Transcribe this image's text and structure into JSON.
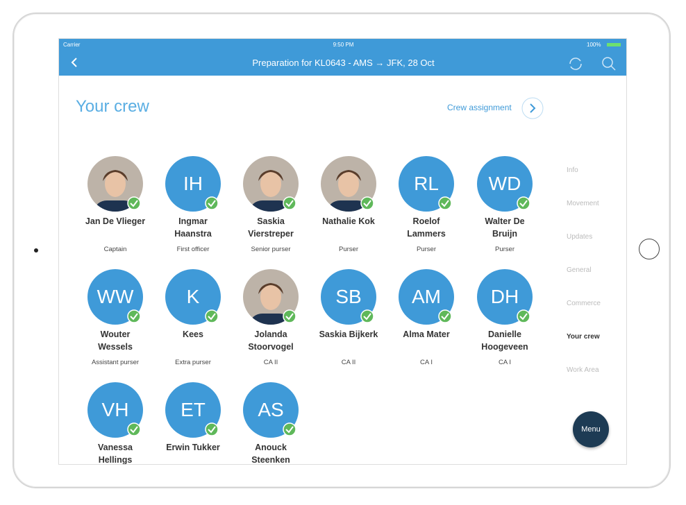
{
  "status_bar": {
    "carrier": "Carrier",
    "time": "9:50 PM",
    "battery": "100%"
  },
  "nav_bar": {
    "title": "Preparation for KL0643 - AMS → JFK, 28 Oct"
  },
  "header": {
    "title": "Your crew",
    "link": "Crew assignment"
  },
  "crew": [
    {
      "name": [
        "Jan De Vlieger"
      ],
      "role": "Captain"
    },
    {
      "initials": "IH",
      "name": [
        "Ingmar",
        "Haanstra"
      ],
      "role": "First officer"
    },
    {
      "name": [
        "Saskia",
        "Vierstreper"
      ],
      "role": "Senior purser"
    },
    {
      "name": [
        "Nathalie Kok"
      ],
      "role": "Purser"
    },
    {
      "initials": "RL",
      "name": [
        "Roelof",
        "Lammers"
      ],
      "role": "Purser"
    },
    {
      "initials": "WD",
      "name": [
        "Walter De",
        "Bruijn"
      ],
      "role": "Purser"
    },
    {
      "initials": "WW",
      "name": [
        "Wouter",
        "Wessels"
      ],
      "role": "Assistant purser"
    },
    {
      "initials": "K",
      "name": [
        "Kees"
      ],
      "role": "Extra purser"
    },
    {
      "name": [
        "Jolanda",
        "Stoorvogel"
      ],
      "role": "CA II"
    },
    {
      "initials": "SB",
      "name": [
        "Saskia Bijkerk"
      ],
      "role": "CA II"
    },
    {
      "initials": "AM",
      "name": [
        "Alma Mater"
      ],
      "role": "CA I"
    },
    {
      "initials": "DH",
      "name": [
        "Danielle",
        "Hoogeveen"
      ],
      "role": "CA I"
    },
    {
      "initials": "VH",
      "name": [
        "Vanessa",
        "Hellings"
      ]
    },
    {
      "initials": "ET",
      "name": [
        "Erwin Tukker"
      ]
    },
    {
      "initials": "AS",
      "name": [
        "Anouck",
        "Steenken"
      ]
    }
  ],
  "side_nav": {
    "items": [
      "Info",
      "Movement",
      "Updates",
      "General",
      "Commerce",
      "Your crew",
      "Work Area"
    ],
    "active": 5
  },
  "menu_button": "Menu"
}
